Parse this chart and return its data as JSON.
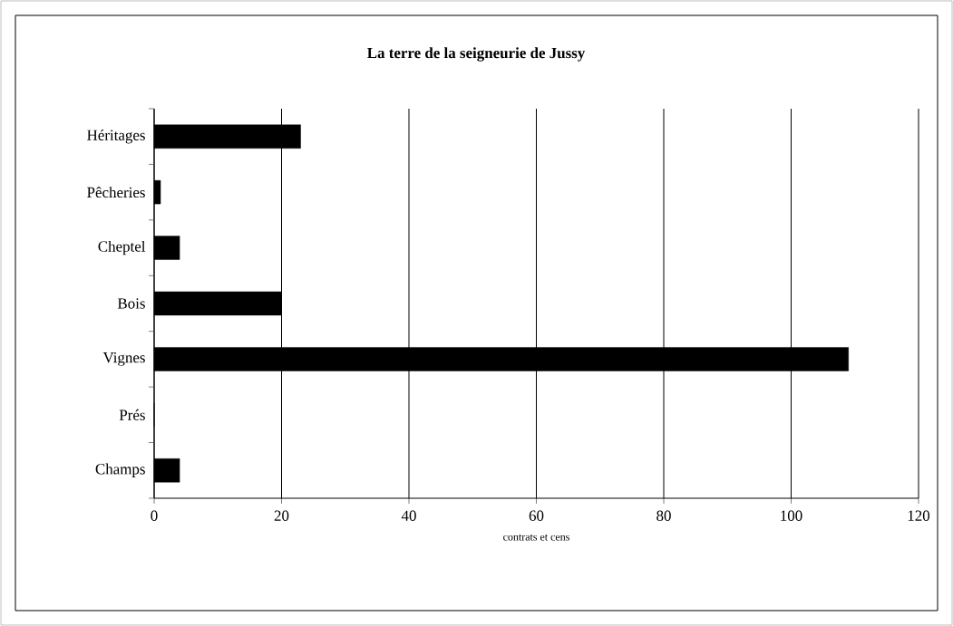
{
  "chart_data": {
    "type": "bar",
    "orientation": "horizontal",
    "title": "La terre de la seigneurie de Jussy",
    "xlabel": "contrats et cens",
    "categories": [
      "Héritages",
      "Pêcheries",
      "Cheptel",
      "Bois",
      "Vignes",
      "Prés",
      "Champs"
    ],
    "values": [
      23,
      1,
      4,
      20,
      109,
      0,
      4
    ],
    "color": "#000000",
    "xlim": [
      0,
      120
    ],
    "xticks": [
      0,
      20,
      40,
      60,
      80,
      100,
      120
    ],
    "grid": "x"
  }
}
